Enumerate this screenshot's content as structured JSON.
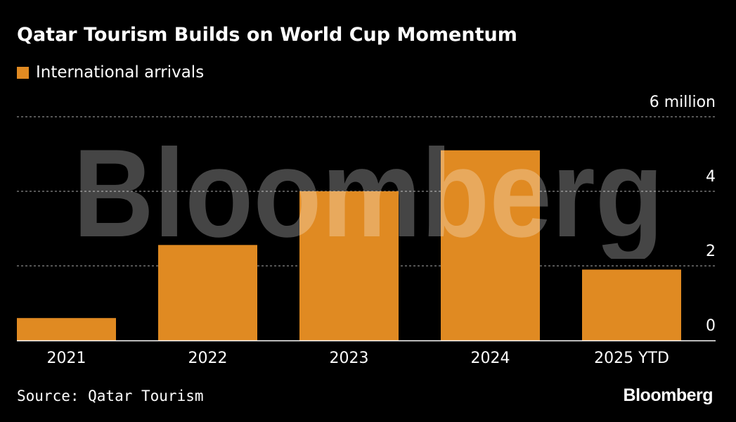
{
  "header": {
    "title": "Qatar Tourism Builds on World Cup Momentum"
  },
  "legend": {
    "label": "International arrivals"
  },
  "footer": {
    "source": "Source: Qatar Tourism",
    "logo": "Bloomberg"
  },
  "watermark": {
    "text": "Bloomberg"
  },
  "colors": {
    "bar": "#e08a22",
    "background": "#000000",
    "grid": "#8a8a8a",
    "text": "#ffffff"
  },
  "chart_data": {
    "type": "bar",
    "title": "Qatar Tourism Builds on World Cup Momentum",
    "categories": [
      "2021",
      "2022",
      "2023",
      "2024",
      "2025 YTD"
    ],
    "series": [
      {
        "name": "International arrivals",
        "values": [
          0.6,
          2.56,
          4.0,
          5.1,
          1.9
        ]
      }
    ],
    "yticks": [
      {
        "value": 0,
        "label": "0"
      },
      {
        "value": 2,
        "label": "2"
      },
      {
        "value": 4,
        "label": "4"
      },
      {
        "value": 6,
        "label": "6 million"
      }
    ],
    "ylim": [
      0,
      6
    ],
    "grid": true,
    "legend_position": "top-left",
    "xlabel": "",
    "ylabel": ""
  }
}
